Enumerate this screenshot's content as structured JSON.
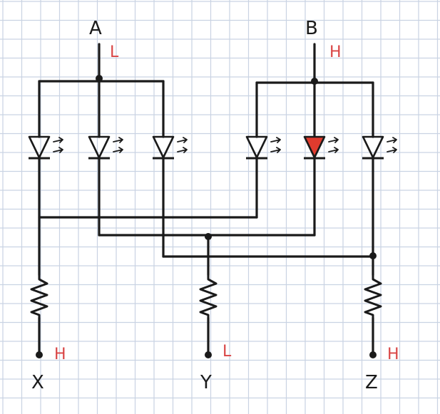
{
  "terminals": {
    "A": {
      "name": "A",
      "state": "L"
    },
    "B": {
      "name": "B",
      "state": "H"
    },
    "X": {
      "name": "X",
      "state": "H"
    },
    "Y": {
      "name": "Y",
      "state": "L"
    },
    "Z": {
      "name": "Z",
      "state": "H"
    }
  },
  "colors": {
    "ink": "#1a1a1a",
    "state_label": "#d94444",
    "lit_led": "#e03b2e",
    "grid": "#c9d3e3",
    "paper": "#ffffff"
  },
  "leds": [
    {
      "id": "A1",
      "lit": false
    },
    {
      "id": "A2",
      "lit": false
    },
    {
      "id": "A3",
      "lit": false
    },
    {
      "id": "B1",
      "lit": false
    },
    {
      "id": "B2",
      "lit": true
    },
    {
      "id": "B3",
      "lit": false
    }
  ]
}
